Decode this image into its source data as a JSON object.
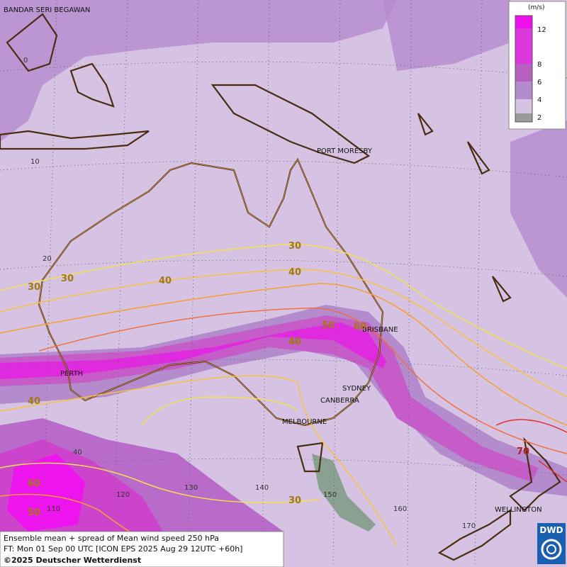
{
  "cities": [
    "BANDAR SERI BEGAWAN",
    "PORT MORESBY",
    "BRISBANE",
    "PERTH",
    "SYDNEY",
    "CANBERRA",
    "MELBOURNE",
    "WELLINGTON"
  ],
  "latitude_labels": [
    "0",
    "10",
    "20",
    "40"
  ],
  "longitude_labels": [
    "110",
    "120",
    "130",
    "140",
    "150",
    "160",
    "170"
  ],
  "contour_labels": [
    30,
    30,
    30,
    40,
    40,
    50,
    60,
    40,
    40,
    70,
    60,
    50,
    30
  ],
  "legend": {
    "unit": "(m/s)",
    "ticks": [
      12,
      8,
      6,
      4,
      2
    ]
  },
  "caption": [
    "Ensemble mean + spread of Mean wind speed 250 hPa",
    "FT: Mon 01 Sep 00 UTC [ICON EPS 2025 Aug 29 12UTC +60h]",
    "©2025 Deutscher Wetterdienst"
  ],
  "logo": "DWD"
}
